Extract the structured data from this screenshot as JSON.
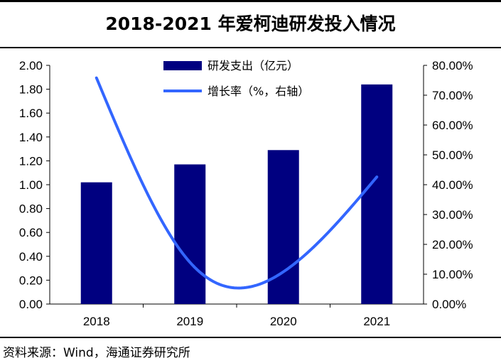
{
  "title": "2018-2021 年爱柯迪研发投入情况",
  "source": "资料来源：Wind，海通证券研究所",
  "colors": {
    "bar": "#000080",
    "line": "#3366FF"
  },
  "chart_data": {
    "type": "bar",
    "categories": [
      "2018",
      "2019",
      "2020",
      "2021"
    ],
    "series": [
      {
        "name": "研发支出（亿元）",
        "type": "bar",
        "axis": "left",
        "values": [
          1.02,
          1.17,
          1.29,
          1.84
        ]
      },
      {
        "name": "增长率（%，右轴）",
        "type": "line",
        "axis": "right",
        "smooth": true,
        "values": [
          75.8,
          14.0,
          10.8,
          42.6
        ]
      }
    ],
    "y_left": {
      "ylim": [
        0,
        2.0
      ],
      "ticks": [
        "0.00",
        "0.20",
        "0.40",
        "0.60",
        "0.80",
        "1.00",
        "1.20",
        "1.40",
        "1.60",
        "1.80",
        "2.00"
      ]
    },
    "y_right": {
      "ylim": [
        0,
        80
      ],
      "ticks": [
        "0.00%",
        "10.00%",
        "20.00%",
        "30.00%",
        "40.00%",
        "50.00%",
        "60.00%",
        "70.00%",
        "80.00%"
      ]
    },
    "legend_position": "top-center",
    "grid": false
  }
}
